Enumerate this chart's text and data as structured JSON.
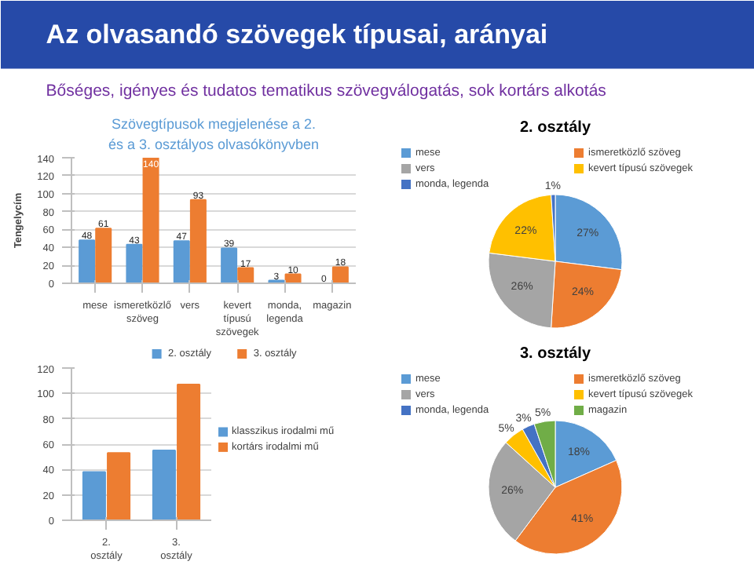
{
  "chart_data": [
    {
      "type": "other",
      "title": "Az olvasandó szövegek típusai, arányai",
      "subtitle": "Bőséges, igényes és tudatos tematikus szövegválogatás, sok kortárs alkotás",
      "color": "#264aa8"
    },
    {
      "type": "bar",
      "title": "Szövegtípusok megjelenése a 2. és a 3. osztályos olvasókönyvben",
      "ylabel": "Tengelycím",
      "categories": [
        "mese",
        "ismeretközlő szöveg",
        "vers",
        "kevert típusú szövegek",
        "monda, legenda",
        "magazin"
      ],
      "series": [
        {
          "name": "2. osztály",
          "color": "#5b9bd5",
          "values": [
            48,
            43,
            47,
            39,
            3,
            0
          ]
        },
        {
          "name": "3. osztály",
          "color": "#ed7d31",
          "values": [
            61,
            140,
            93,
            17,
            10,
            18
          ]
        }
      ],
      "ylim": [
        0,
        140
      ],
      "yticks": [
        0,
        20,
        40,
        60,
        80,
        100,
        120,
        140
      ],
      "grid": "y",
      "legend": "bottom",
      "data_labels": true
    },
    {
      "type": "bar",
      "categories": [
        "2. osztály",
        "3. osztály"
      ],
      "series": [
        {
          "name": "klasszikus irodalmi mű",
          "color": "#5b9bd5",
          "values": [
            38,
            55
          ]
        },
        {
          "name": "kortárs irodalmi mű",
          "color": "#ed7d31",
          "values": [
            53,
            107
          ]
        }
      ],
      "ylim": [
        0,
        120
      ],
      "yticks": [
        0,
        20,
        40,
        60,
        80,
        100,
        120
      ],
      "grid": "y",
      "legend": "right"
    },
    {
      "type": "pie",
      "title": "2. osztály",
      "categories": [
        "mese",
        "ismeretközlő szöveg",
        "vers",
        "kevert típusú szövegek",
        "monda, legenda"
      ],
      "values": [
        27,
        24,
        26,
        22,
        1
      ],
      "colors": [
        "#5b9bd5",
        "#ed7d31",
        "#a5a5a5",
        "#ffc000",
        "#4472c4"
      ],
      "value_labels": [
        "27%",
        "24%",
        "26%",
        "22%",
        "1%"
      ],
      "legend": "top"
    },
    {
      "type": "pie",
      "title": "3. osztály",
      "categories": [
        "mese",
        "ismeretközlő szöveg",
        "vers",
        "kevert típusú szövegek",
        "monda, legenda",
        "magazin"
      ],
      "values": [
        18,
        41,
        26,
        5,
        3,
        5
      ],
      "colors": [
        "#5b9bd5",
        "#ed7d31",
        "#a5a5a5",
        "#ffc000",
        "#4472c4",
        "#70ad47"
      ],
      "value_labels": [
        "18%",
        "41%",
        "26%",
        "5%",
        "3%",
        "5%"
      ],
      "legend": "top"
    }
  ]
}
